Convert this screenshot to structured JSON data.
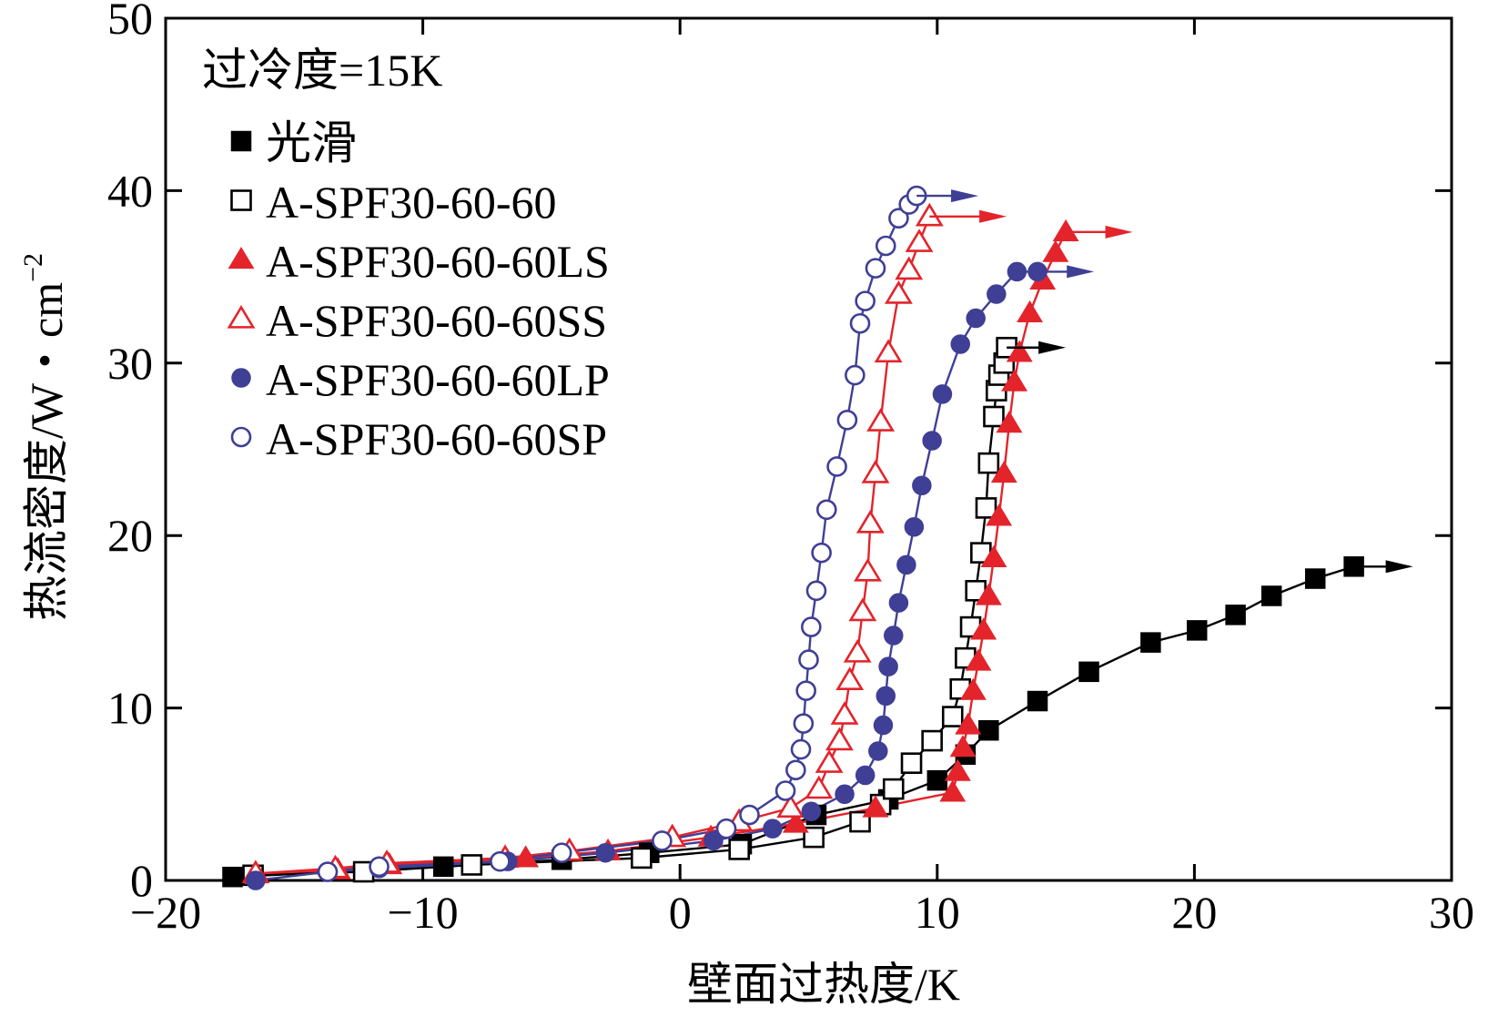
{
  "chart_data": {
    "type": "scatter",
    "title": "",
    "xlabel": "壁面过热度/K",
    "ylabel": "热流密度/W・cm",
    "ylabel_sup": "−2",
    "xlim": [
      -20,
      30
    ],
    "ylim": [
      0,
      50
    ],
    "xticks": [
      -20,
      -10,
      0,
      10,
      20,
      30
    ],
    "xtick_labels": [
      "−20",
      "−10",
      "0",
      "10",
      "20",
      "30"
    ],
    "yticks": [
      0,
      10,
      20,
      30,
      40,
      50
    ],
    "ytick_labels": [
      "0",
      "10",
      "20",
      "30",
      "40",
      "50"
    ],
    "grid": false,
    "legend_title": "过冷度=15K",
    "legend_position": "top-left",
    "series": [
      {
        "name": "光滑",
        "marker": "square",
        "filled": true,
        "color": "#000000",
        "x": [
          -17.4,
          -9.2,
          -4.6,
          -1.2,
          2.4,
          5.3,
          8.1,
          10.0,
          11.1,
          12.0,
          13.9,
          15.9,
          18.3,
          20.1,
          21.6,
          23.0,
          24.7,
          26.2
        ],
        "y": [
          0.2,
          0.8,
          1.2,
          1.6,
          2.1,
          3.8,
          4.7,
          5.8,
          7.3,
          8.7,
          10.4,
          12.1,
          13.8,
          14.5,
          15.4,
          16.5,
          17.5,
          18.2
        ],
        "arrow_to": 28.5
      },
      {
        "name": "A-SPF30-60-60",
        "marker": "square",
        "filled": false,
        "color": "#000000",
        "x": [
          -16.6,
          -12.3,
          -8.1,
          -1.5,
          2.3,
          5.2,
          7.0,
          7.8,
          8.3,
          9.0,
          9.8,
          10.6,
          10.9,
          11.1,
          11.3,
          11.5,
          11.7,
          11.9,
          12.0,
          12.2,
          12.3,
          12.4,
          12.6,
          12.7
        ],
        "y": [
          0.3,
          0.5,
          0.9,
          1.3,
          1.8,
          2.5,
          3.4,
          4.4,
          5.3,
          6.8,
          8.1,
          9.5,
          11.1,
          12.9,
          14.7,
          16.8,
          19.0,
          21.6,
          24.2,
          26.9,
          28.4,
          29.3,
          30.0,
          30.9
        ],
        "arrow_to": 15.0
      },
      {
        "name": "A-SPF30-60-60LS",
        "marker": "triangle",
        "filled": true,
        "color": "#e3242b",
        "x": [
          -16.5,
          -13.3,
          -11.3,
          -6.0,
          -2.8,
          1.2,
          4.5,
          7.6,
          10.6,
          10.8,
          11.0,
          11.2,
          11.4,
          11.6,
          11.8,
          12.0,
          12.2,
          12.4,
          12.6,
          12.8,
          13.0,
          13.2,
          13.6,
          14.1,
          14.6,
          15.0
        ],
        "y": [
          0.4,
          0.6,
          0.9,
          1.3,
          1.7,
          2.5,
          3.3,
          4.2,
          5.1,
          6.3,
          7.7,
          9.0,
          11.0,
          12.7,
          14.5,
          16.5,
          18.7,
          21.1,
          23.6,
          26.5,
          28.9,
          30.6,
          32.9,
          34.8,
          36.4,
          37.6
        ],
        "arrow_to": 17.6
      },
      {
        "name": "A-SPF30-60-60SS",
        "marker": "triangle",
        "filled": false,
        "color": "#e3242b",
        "x": [
          -16.5,
          -13.4,
          -11.4,
          -6.8,
          -4.3,
          -0.3,
          2.3,
          4.3,
          5.4,
          5.8,
          6.2,
          6.4,
          6.6,
          6.9,
          7.1,
          7.3,
          7.4,
          7.6,
          7.8,
          8.1,
          8.5,
          8.9,
          9.3,
          9.7
        ],
        "y": [
          0.4,
          0.7,
          1.0,
          1.3,
          1.7,
          2.5,
          3.4,
          4.2,
          5.3,
          6.8,
          8.1,
          9.6,
          11.6,
          13.2,
          15.6,
          17.9,
          20.7,
          23.6,
          26.6,
          30.6,
          34.0,
          35.4,
          37.0,
          38.5
        ],
        "arrow_to": 12.7
      },
      {
        "name": "A-SPF30-60-60LP",
        "marker": "circle",
        "filled": true,
        "color": "#3f3f96",
        "x": [
          -16.5,
          -13.7,
          -11.7,
          -6.7,
          -2.9,
          1.3,
          3.6,
          5.1,
          6.4,
          7.2,
          7.7,
          7.9,
          8.0,
          8.1,
          8.3,
          8.5,
          8.8,
          9.1,
          9.4,
          9.8,
          10.2,
          10.9,
          11.5,
          12.3,
          13.1,
          13.9
        ],
        "y": [
          0.0,
          0.5,
          0.7,
          1.1,
          1.6,
          2.3,
          3.0,
          4.0,
          5.0,
          6.1,
          7.5,
          9.0,
          10.7,
          12.4,
          14.2,
          16.1,
          18.3,
          20.5,
          22.9,
          25.5,
          28.2,
          31.1,
          32.6,
          34.0,
          35.3,
          35.3
        ],
        "arrow_to": 16.1
      },
      {
        "name": "A-SPF30-60-60SP",
        "marker": "circle",
        "filled": false,
        "color": "#3f3f96",
        "x": [
          -13.7,
          -11.7,
          -7.0,
          -4.6,
          -0.7,
          1.8,
          2.7,
          4.1,
          4.5,
          4.7,
          4.8,
          4.9,
          5.0,
          5.1,
          5.3,
          5.5,
          5.7,
          6.1,
          6.5,
          6.8,
          7.0,
          7.2,
          7.6,
          8.0,
          8.5,
          8.9,
          9.2
        ],
        "y": [
          0.5,
          0.8,
          1.1,
          1.6,
          2.3,
          3.0,
          3.8,
          5.2,
          6.4,
          7.6,
          9.1,
          11.0,
          12.8,
          14.7,
          16.8,
          19.0,
          21.5,
          24.0,
          26.7,
          29.3,
          32.3,
          33.6,
          35.5,
          36.8,
          38.4,
          39.2,
          39.7
        ],
        "arrow_to": 11.6
      }
    ]
  }
}
